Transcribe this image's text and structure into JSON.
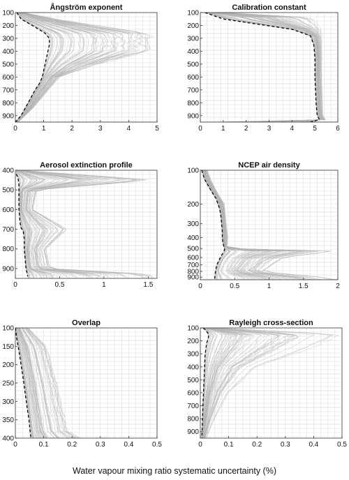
{
  "xlabel": "Water vapour mixing ratio systematic uncertainty (%)",
  "colors": {
    "ensemble": "#b3b3b3",
    "mean": "#000000",
    "grid": "#d9d9d9"
  },
  "chart_data": [
    {
      "type": "line",
      "title": "Ångström exponent",
      "xlim": [
        0,
        5
      ],
      "ylim": [
        100,
        950
      ],
      "y_reversed": true,
      "xticks": [
        "0",
        "1",
        "2",
        "3",
        "4",
        "5"
      ],
      "yticks": [
        "100",
        "200",
        "300",
        "400",
        "500",
        "600",
        "700",
        "800",
        "900"
      ],
      "grid": true,
      "series": [
        {
          "role": "mean",
          "points": [
            [
              0.05,
              100
            ],
            [
              0.2,
              150
            ],
            [
              0.6,
              200
            ],
            [
              1.05,
              260
            ],
            [
              1.2,
              300
            ],
            [
              1.2,
              350
            ],
            [
              1.15,
              400
            ],
            [
              1.1,
              450
            ],
            [
              1.05,
              500
            ],
            [
              1.0,
              550
            ],
            [
              0.95,
              600
            ],
            [
              0.85,
              650
            ],
            [
              0.7,
              700
            ],
            [
              0.45,
              800
            ],
            [
              0.2,
              900
            ],
            [
              0.0,
              950
            ]
          ]
        },
        {
          "role": "ensemble_envelope",
          "points": [
            [
              0.3,
              100
            ],
            [
              1.5,
              150
            ],
            [
              3.0,
              200
            ],
            [
              5.0,
              260
            ],
            [
              5.0,
              400
            ],
            [
              3.0,
              500
            ],
            [
              1.6,
              600
            ],
            [
              1.2,
              700
            ],
            [
              0.6,
              850
            ],
            [
              0.1,
              950
            ]
          ]
        }
      ]
    },
    {
      "type": "line",
      "title": "Calibration constant",
      "xlim": [
        0,
        6
      ],
      "ylim": [
        100,
        950
      ],
      "y_reversed": true,
      "xticks": [
        "0",
        "1",
        "2",
        "3",
        "4",
        "5",
        "6"
      ],
      "yticks": [
        "100",
        "200",
        "300",
        "400",
        "500",
        "600",
        "700",
        "800",
        "900"
      ],
      "grid": true,
      "series": [
        {
          "role": "mean",
          "points": [
            [
              0.2,
              100
            ],
            [
              1.0,
              150
            ],
            [
              2.5,
              190
            ],
            [
              4.0,
              230
            ],
            [
              4.8,
              280
            ],
            [
              4.95,
              350
            ],
            [
              5.0,
              450
            ],
            [
              5.0,
              600
            ],
            [
              5.05,
              800
            ],
            [
              5.1,
              900
            ],
            [
              5.2,
              930
            ],
            [
              4.8,
              950
            ]
          ]
        },
        {
          "role": "ensemble_envelope",
          "points": [
            [
              1.0,
              100
            ],
            [
              5.0,
              140
            ],
            [
              5.3,
              250
            ],
            [
              5.3,
              600
            ],
            [
              5.35,
              900
            ],
            [
              5.5,
              940
            ],
            [
              0.5,
              950
            ]
          ]
        }
      ]
    },
    {
      "type": "line",
      "title": "Aerosol extinction profile",
      "xlim": [
        0,
        1.6
      ],
      "ylim": [
        400,
        950
      ],
      "y_reversed": true,
      "xticks": [
        "0",
        "0.5",
        "1",
        "1.5"
      ],
      "yticks": [
        "400",
        "500",
        "600",
        "700",
        "800",
        "900"
      ],
      "grid": true,
      "series": [
        {
          "role": "mean",
          "points": [
            [
              0.01,
              420
            ],
            [
              0.03,
              440
            ],
            [
              0.04,
              470
            ],
            [
              0.04,
              500
            ],
            [
              0.04,
              550
            ],
            [
              0.04,
              600
            ],
            [
              0.05,
              650
            ],
            [
              0.06,
              690
            ],
            [
              0.09,
              710
            ],
            [
              0.1,
              750
            ],
            [
              0.1,
              800
            ],
            [
              0.11,
              850
            ],
            [
              0.12,
              900
            ],
            [
              0.14,
              940
            ]
          ]
        },
        {
          "role": "ensemble_envelope",
          "points": [
            [
              0.05,
              400
            ],
            [
              1.6,
              450
            ],
            [
              0.25,
              500
            ],
            [
              0.2,
              600
            ],
            [
              0.6,
              700
            ],
            [
              0.35,
              800
            ],
            [
              0.4,
              900
            ],
            [
              1.6,
              930
            ]
          ]
        }
      ]
    },
    {
      "type": "line",
      "title": "NCEP air density",
      "xlim": [
        0,
        2
      ],
      "ylim": [
        100,
        950
      ],
      "y_reversed": true,
      "y_scale": "log",
      "xticks": [
        "0",
        "0.5",
        "1",
        "1.5",
        "2"
      ],
      "yticks": [
        "100",
        "200",
        "300",
        "400",
        "500",
        "600",
        "700",
        "800",
        "900"
      ],
      "grid": true,
      "series": [
        {
          "role": "mean",
          "points": [
            [
              0.02,
              100
            ],
            [
              0.06,
              120
            ],
            [
              0.15,
              150
            ],
            [
              0.23,
              180
            ],
            [
              0.28,
              220
            ],
            [
              0.3,
              260
            ],
            [
              0.31,
              300
            ],
            [
              0.32,
              350
            ],
            [
              0.32,
              400
            ],
            [
              0.33,
              450
            ],
            [
              0.35,
              500
            ],
            [
              0.35,
              520
            ],
            [
              0.32,
              560
            ],
            [
              0.28,
              620
            ],
            [
              0.24,
              700
            ],
            [
              0.22,
              800
            ],
            [
              0.21,
              900
            ],
            [
              0.21,
              950
            ]
          ]
        },
        {
          "role": "ensemble_envelope",
          "points": [
            [
              0.1,
              100
            ],
            [
              0.35,
              200
            ],
            [
              0.4,
              400
            ],
            [
              0.38,
              500
            ],
            [
              2.0,
              520
            ],
            [
              1.2,
              600
            ],
            [
              0.9,
              800
            ],
            [
              2.0,
              930
            ]
          ]
        }
      ]
    },
    {
      "type": "line",
      "title": "Overlap",
      "xlim": [
        0,
        0.5
      ],
      "ylim": [
        100,
        400
      ],
      "y_reversed": true,
      "xticks": [
        "0",
        "0.1",
        "0.2",
        "0.3",
        "0.4",
        "0.5"
      ],
      "yticks": [
        "100",
        "150",
        "200",
        "250",
        "300",
        "350",
        "400"
      ],
      "grid": true,
      "series": [
        {
          "role": "mean",
          "points": [
            [
              0.0,
              100
            ],
            [
              0.005,
              130
            ],
            [
              0.012,
              160
            ],
            [
              0.02,
              200
            ],
            [
              0.028,
              240
            ],
            [
              0.035,
              280
            ],
            [
              0.042,
              320
            ],
            [
              0.048,
              350
            ],
            [
              0.052,
              380
            ],
            [
              0.055,
              400
            ]
          ]
        },
        {
          "role": "ensemble_envelope",
          "points": [
            [
              0.05,
              100
            ],
            [
              0.12,
              150
            ],
            [
              0.16,
              250
            ],
            [
              0.18,
              320
            ],
            [
              0.2,
              380
            ],
            [
              0.25,
              400
            ]
          ]
        }
      ]
    },
    {
      "type": "line",
      "title": "Rayleigh cross-section",
      "xlim": [
        0,
        0.5
      ],
      "ylim": [
        100,
        950
      ],
      "y_reversed": true,
      "xticks": [
        "0",
        "0.1",
        "0.2",
        "0.3",
        "0.4",
        "0.5"
      ],
      "yticks": [
        "100",
        "200",
        "300",
        "400",
        "500",
        "600",
        "700",
        "800",
        "900"
      ],
      "grid": true,
      "series": [
        {
          "role": "mean",
          "points": [
            [
              0.01,
              100
            ],
            [
              0.02,
              120
            ],
            [
              0.03,
              150
            ],
            [
              0.028,
              180
            ],
            [
              0.022,
              220
            ],
            [
              0.02,
              260
            ],
            [
              0.017,
              300
            ],
            [
              0.015,
              400
            ],
            [
              0.013,
              500
            ],
            [
              0.011,
              600
            ],
            [
              0.009,
              700
            ],
            [
              0.008,
              800
            ],
            [
              0.006,
              900
            ],
            [
              0.005,
              950
            ]
          ]
        },
        {
          "role": "ensemble_envelope",
          "points": [
            [
              0.05,
              100
            ],
            [
              0.5,
              150
            ],
            [
              0.4,
              250
            ],
            [
              0.2,
              400
            ],
            [
              0.1,
              600
            ],
            [
              0.05,
              800
            ],
            [
              0.02,
              950
            ]
          ]
        }
      ]
    }
  ]
}
